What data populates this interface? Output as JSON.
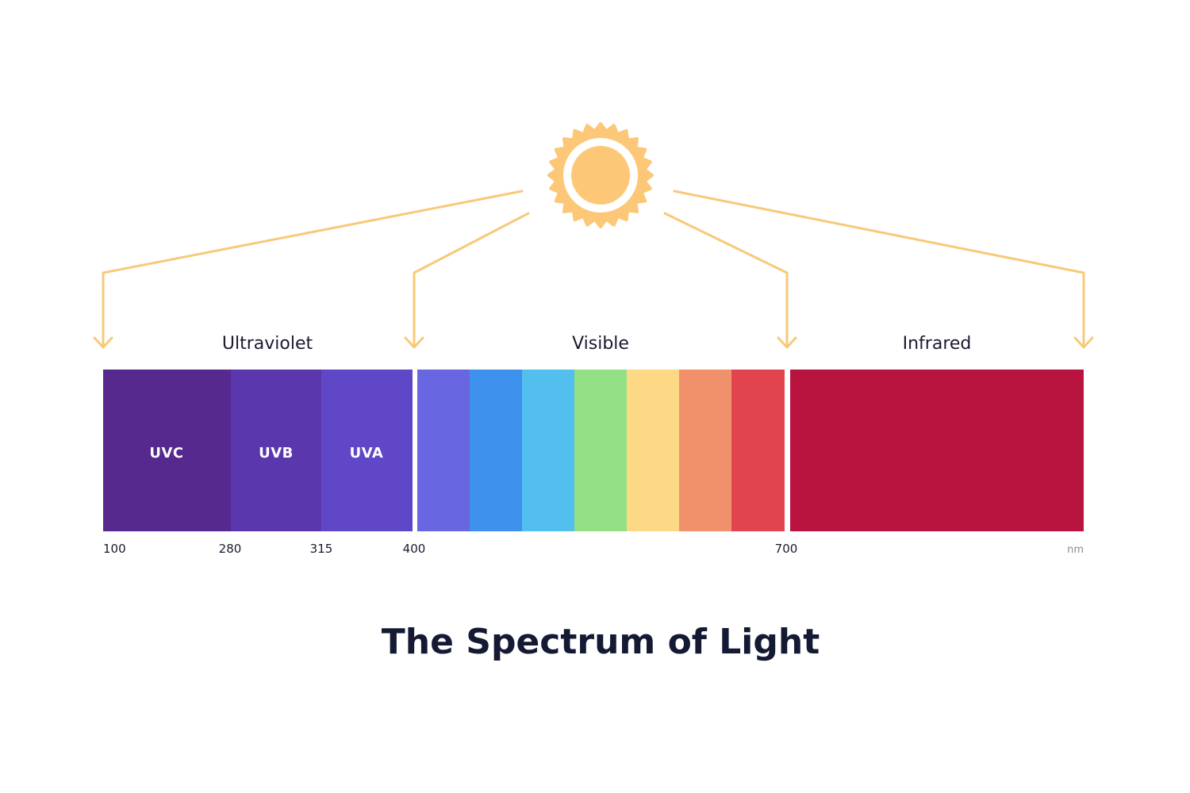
{
  "title": "The Spectrum of Light",
  "sun_color": "#fcc878",
  "ray_color": "#f8c97a",
  "unit": "nm",
  "regions": [
    {
      "label": "Ultraviolet"
    },
    {
      "label": "Visible"
    },
    {
      "label": "Infrared"
    }
  ],
  "uv_bands": [
    {
      "label": "UVC",
      "color": "#55298e"
    },
    {
      "label": "UVB",
      "color": "#5b37ad"
    },
    {
      "label": "UVA",
      "color": "#6047c8"
    }
  ],
  "visible_bands": [
    {
      "color": "#6966e2"
    },
    {
      "color": "#3f91ee"
    },
    {
      "color": "#53bfef"
    },
    {
      "color": "#92e083"
    },
    {
      "color": "#fdd986"
    },
    {
      "color": "#f1916b"
    },
    {
      "color": "#e2444f"
    }
  ],
  "infrared_band": {
    "color": "#b8143f"
  },
  "ticks": [
    "100",
    "280",
    "315",
    "400",
    "700"
  ]
}
